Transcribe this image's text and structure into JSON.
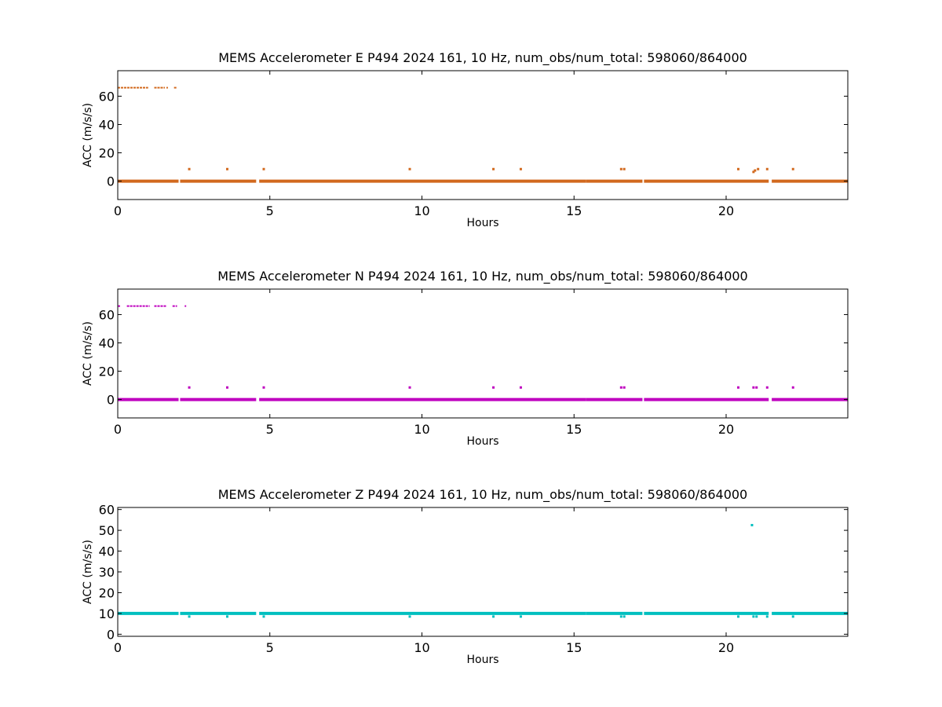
{
  "chart_data": [
    {
      "type": "scatter",
      "title": "MEMS Accelerometer E P494 2024 161, 10 Hz, num_obs/num_total: 598060/864000",
      "xlabel": "Hours",
      "ylabel": "ACC (m/s/s)",
      "xlim": [
        0,
        24
      ],
      "ylim": [
        -13,
        78
      ],
      "xticks": [
        0,
        5,
        10,
        15,
        20
      ],
      "yticks": [
        0,
        20,
        40,
        60
      ],
      "grid": false,
      "color": "#d2691e",
      "series": [
        {
          "baseline_value": 0.0,
          "baseline_segments": [
            [
              0.0,
              2.0
            ],
            [
              2.05,
              4.55
            ],
            [
              4.65,
              7.2
            ],
            [
              7.2,
              15.4
            ],
            [
              15.4,
              17.25
            ],
            [
              17.3,
              21.4
            ],
            [
              21.5,
              24.0
            ]
          ],
          "high_segments": [
            [
              0.0,
              1.0
            ],
            [
              1.2,
              1.55
            ],
            [
              1.6,
              1.65
            ],
            [
              1.85,
              1.95
            ]
          ],
          "high_value": 66.0,
          "spikes": [
            [
              2.35,
              8.5
            ],
            [
              3.6,
              8.5
            ],
            [
              4.8,
              8.5
            ],
            [
              9.6,
              8.5
            ],
            [
              12.35,
              8.5
            ],
            [
              13.25,
              8.5
            ],
            [
              16.55,
              8.5
            ],
            [
              16.65,
              8.5
            ],
            [
              20.4,
              8.5
            ],
            [
              20.9,
              6.5
            ],
            [
              20.95,
              7.5
            ],
            [
              21.05,
              8.5
            ],
            [
              21.35,
              8.5
            ],
            [
              22.2,
              8.5
            ]
          ]
        }
      ]
    },
    {
      "type": "scatter",
      "title": "MEMS Accelerometer N P494 2024 161, 10 Hz, num_obs/num_total: 598060/864000",
      "xlabel": "Hours",
      "ylabel": "ACC (m/s/s)",
      "xlim": [
        0,
        24
      ],
      "ylim": [
        -13,
        78
      ],
      "xticks": [
        0,
        5,
        10,
        15,
        20
      ],
      "yticks": [
        0,
        20,
        40,
        60
      ],
      "grid": false,
      "color": "#bf00bf",
      "series": [
        {
          "baseline_value": 0.0,
          "baseline_segments": [
            [
              0.0,
              2.0
            ],
            [
              2.05,
              4.55
            ],
            [
              4.65,
              7.2
            ],
            [
              7.2,
              15.4
            ],
            [
              15.4,
              17.25
            ],
            [
              17.3,
              21.4
            ],
            [
              21.5,
              24.0
            ]
          ],
          "high_segments": [
            [
              0.0,
              0.1
            ],
            [
              0.3,
              1.05
            ],
            [
              1.2,
              1.6
            ],
            [
              1.8,
              1.95
            ],
            [
              2.2,
              2.25
            ]
          ],
          "high_value": 66.0,
          "spikes": [
            [
              2.35,
              8.5
            ],
            [
              3.6,
              8.5
            ],
            [
              4.8,
              8.5
            ],
            [
              9.6,
              8.5
            ],
            [
              12.35,
              8.5
            ],
            [
              13.25,
              8.5
            ],
            [
              16.55,
              8.5
            ],
            [
              16.65,
              8.5
            ],
            [
              20.4,
              8.5
            ],
            [
              20.9,
              8.5
            ],
            [
              21.0,
              8.5
            ],
            [
              21.35,
              8.5
            ],
            [
              22.2,
              8.5
            ]
          ]
        }
      ]
    },
    {
      "type": "scatter",
      "title": "MEMS Accelerometer Z P494 2024 161, 10 Hz, num_obs/num_total: 598060/864000",
      "xlabel": "Hours",
      "ylabel": "ACC (m/s/s)",
      "xlim": [
        0,
        24
      ],
      "ylim": [
        -1,
        61
      ],
      "xticks": [
        0,
        5,
        10,
        15,
        20
      ],
      "yticks": [
        0,
        10,
        20,
        30,
        40,
        50,
        60
      ],
      "grid": false,
      "color": "#00bfbf",
      "series": [
        {
          "baseline_value": 10.0,
          "baseline_segments": [
            [
              0.0,
              2.0
            ],
            [
              2.05,
              4.55
            ],
            [
              4.65,
              7.2
            ],
            [
              7.2,
              15.4
            ],
            [
              15.4,
              17.25
            ],
            [
              17.3,
              21.4
            ],
            [
              21.5,
              24.0
            ]
          ],
          "high_segments": [],
          "high_value": 10.0,
          "spikes": [
            [
              2.35,
              8.5
            ],
            [
              3.6,
              8.5
            ],
            [
              4.8,
              8.5
            ],
            [
              9.6,
              8.5
            ],
            [
              12.35,
              8.5
            ],
            [
              13.25,
              8.5
            ],
            [
              16.55,
              8.5
            ],
            [
              16.65,
              8.5
            ],
            [
              20.4,
              8.5
            ],
            [
              20.9,
              8.5
            ],
            [
              21.0,
              8.5
            ],
            [
              21.35,
              8.5
            ],
            [
              22.2,
              8.5
            ],
            [
              20.85,
              52.5
            ]
          ]
        }
      ]
    }
  ]
}
